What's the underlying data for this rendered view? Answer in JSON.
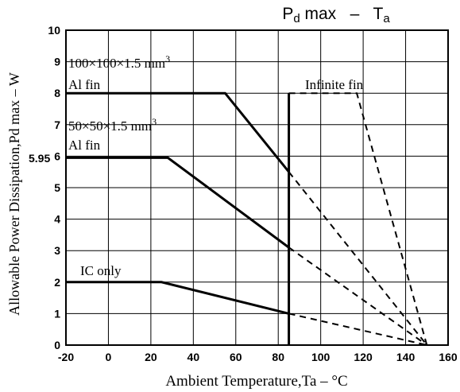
{
  "chart_data": {
    "type": "line",
    "title_main": "P",
    "title_sub1": "d",
    "title_mid": " max   –   T",
    "title_sub2": "a",
    "xlabel": "Ambient Temperature,Ta – °C",
    "ylabel": "Allowable Power Dissipation,Pd max – W",
    "xlim": [
      -20,
      160
    ],
    "ylim": [
      0,
      10
    ],
    "x_ticks": [
      -20,
      0,
      20,
      40,
      60,
      80,
      100,
      120,
      140,
      160
    ],
    "y_ticks": [
      0,
      1,
      2,
      3,
      4,
      5,
      6,
      7,
      8,
      9,
      10
    ],
    "y_extra_label": {
      "value": 5.95,
      "text": "5.95"
    },
    "grid": true,
    "vertical_marker_x": 85,
    "series": [
      {
        "name": "100×100×1.5 mm3 Al fin",
        "style": "solid",
        "x": [
          -20,
          55,
          85
        ],
        "y": [
          8,
          8,
          5.5
        ]
      },
      {
        "name": "100×100×1.5 mm3 Al fin",
        "style": "dashed",
        "x": [
          85,
          150
        ],
        "y": [
          5.5,
          0
        ]
      },
      {
        "name": "50×50×1.5 mm3 Al fin",
        "style": "solid",
        "x": [
          -20,
          28,
          85
        ],
        "y": [
          5.95,
          5.95,
          3.1
        ]
      },
      {
        "name": "50×50×1.5 mm3 Al fin",
        "style": "dashed",
        "x": [
          85,
          150
        ],
        "y": [
          3.1,
          0
        ]
      },
      {
        "name": "IC only",
        "style": "solid",
        "x": [
          -20,
          25,
          85
        ],
        "y": [
          2,
          2,
          1
        ]
      },
      {
        "name": "IC only",
        "style": "dashed",
        "x": [
          85,
          150
        ],
        "y": [
          1,
          0
        ]
      },
      {
        "name": "Infinite fin",
        "style": "dashed",
        "x": [
          85,
          117,
          150
        ],
        "y": [
          8,
          8,
          0
        ]
      }
    ],
    "annotations": {
      "fin100_line1": "100×100×1.5 mm",
      "fin100_line2": "Al fin",
      "fin50_line1": "50×50×1.5 mm",
      "fin50_line2": "Al fin",
      "sup3": "3",
      "infinite": "Infinite fin",
      "ic_only": "IC  only"
    }
  }
}
